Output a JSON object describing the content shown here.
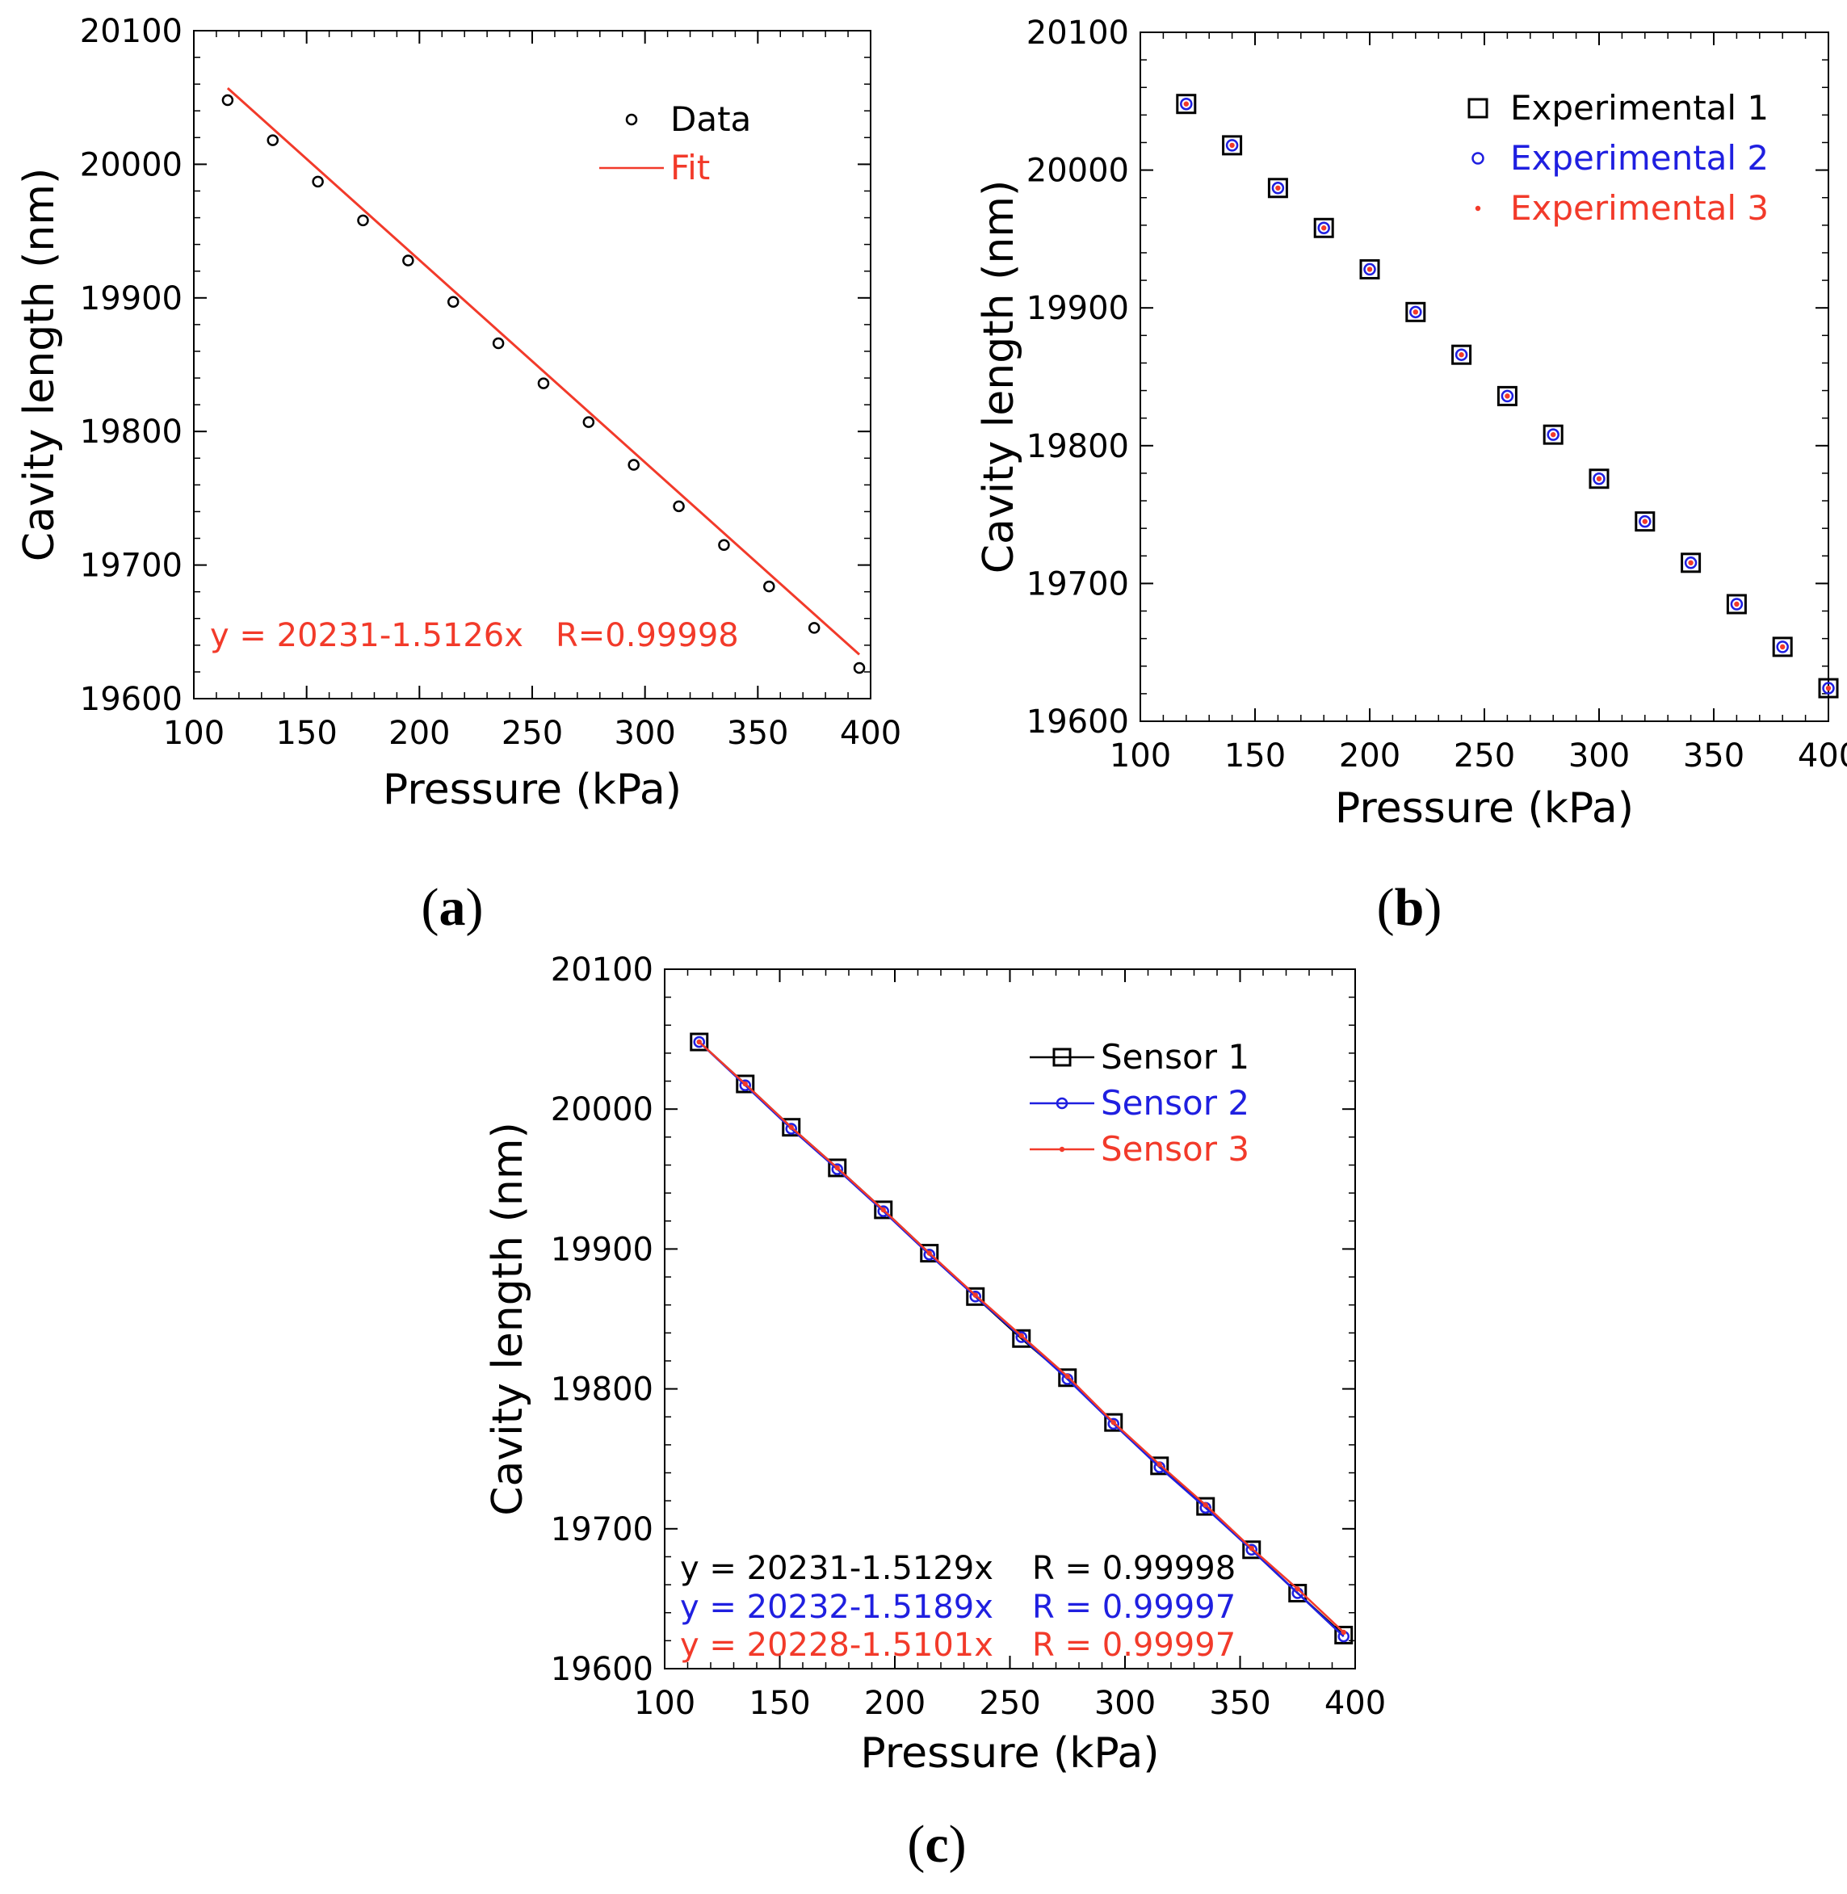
{
  "colors": {
    "black": "#000000",
    "blue": "#1f1fe0",
    "red": "#f23a2a"
  },
  "chart_data": [
    {
      "panel": "a",
      "type": "scatter",
      "panel_label": {
        "open": "(",
        "letter": "a",
        "close": ")"
      },
      "xlabel": "Pressure (kPa)",
      "ylabel": "Cavity length (nm)",
      "xlim": [
        100,
        400
      ],
      "ylim": [
        19600,
        20100
      ],
      "xticks": [
        100,
        150,
        200,
        250,
        300,
        350,
        400
      ],
      "yticks": [
        19600,
        19700,
        19800,
        19900,
        20000,
        20100
      ],
      "legend_position": "top-right",
      "series": [
        {
          "name": "Data",
          "marker": "circle",
          "color": "#000000",
          "x": [
            115,
            135,
            155,
            175,
            195,
            215,
            235,
            255,
            275,
            295,
            315,
            335,
            355,
            375,
            395
          ],
          "y": [
            20048,
            20018,
            19987,
            19958,
            19928,
            19897,
            19866,
            19836,
            19807,
            19775,
            19744,
            19715,
            19684,
            19653,
            19623
          ]
        },
        {
          "name": "Fit",
          "line": true,
          "color": "#f23a2a",
          "x": [
            115,
            395
          ],
          "y": [
            20057,
            19633
          ]
        }
      ],
      "annotations": [
        {
          "id": "eq1",
          "text": "y = 20231-1.5126x",
          "color": "#f23a2a"
        },
        {
          "id": "r1",
          "text": "R=0.99998",
          "color": "#f23a2a"
        }
      ]
    },
    {
      "panel": "b",
      "type": "scatter",
      "panel_label": {
        "open": "(",
        "letter": "b",
        "close": ")"
      },
      "xlabel": "Pressure (kPa)",
      "ylabel": "Cavity length (nm)",
      "xlim": [
        100,
        400
      ],
      "ylim": [
        19600,
        20100
      ],
      "xticks": [
        100,
        150,
        200,
        250,
        300,
        350,
        400
      ],
      "yticks": [
        19600,
        19700,
        19800,
        19900,
        20000,
        20100
      ],
      "legend_position": "top-right",
      "series": [
        {
          "name": "Experimental 1",
          "marker": "square",
          "color": "#000000",
          "x": [
            120,
            140,
            160,
            180,
            200,
            220,
            240,
            260,
            280,
            300,
            320,
            340,
            360,
            380,
            400
          ],
          "y": [
            20048,
            20018,
            19987,
            19958,
            19928,
            19897,
            19866,
            19836,
            19808,
            19776,
            19745,
            19715,
            19685,
            19654,
            19624
          ]
        },
        {
          "name": "Experimental 2",
          "marker": "circle",
          "color": "#1f1fe0",
          "x": [
            120,
            140,
            160,
            180,
            200,
            220,
            240,
            260,
            280,
            300,
            320,
            340,
            360,
            380,
            400
          ],
          "y": [
            20048,
            20018,
            19987,
            19958,
            19928,
            19897,
            19866,
            19836,
            19808,
            19776,
            19745,
            19715,
            19685,
            19654,
            19624
          ]
        },
        {
          "name": "Experimental 3",
          "marker": "dot",
          "color": "#f23a2a",
          "x": [
            120,
            140,
            160,
            180,
            200,
            220,
            240,
            260,
            280,
            300,
            320,
            340,
            360,
            380,
            400
          ],
          "y": [
            20048,
            20018,
            19987,
            19958,
            19928,
            19897,
            19866,
            19836,
            19808,
            19776,
            19745,
            19715,
            19685,
            19654,
            19624
          ]
        }
      ]
    },
    {
      "panel": "c",
      "type": "line",
      "panel_label": {
        "open": "(",
        "letter": "c",
        "close": ")"
      },
      "xlabel": "Pressure (kPa)",
      "ylabel": "Cavity length (nm)",
      "xlim": [
        100,
        400
      ],
      "ylim": [
        19600,
        20100
      ],
      "xticks": [
        100,
        150,
        200,
        250,
        300,
        350,
        400
      ],
      "yticks": [
        19600,
        19700,
        19800,
        19900,
        20000,
        20100
      ],
      "legend_position": "top-right",
      "series": [
        {
          "name": "Sensor 1",
          "marker": "square",
          "color": "#000000",
          "x": [
            115,
            135,
            155,
            175,
            195,
            215,
            235,
            255,
            275,
            295,
            315,
            335,
            355,
            375,
            395
          ],
          "y": [
            20048,
            20018,
            19987,
            19958,
            19928,
            19897,
            19866,
            19836,
            19808,
            19776,
            19745,
            19716,
            19685,
            19654,
            19624
          ]
        },
        {
          "name": "Sensor 2",
          "marker": "circle",
          "color": "#1f1fe0",
          "x": [
            115,
            135,
            155,
            175,
            195,
            215,
            235,
            255,
            275,
            295,
            315,
            335,
            355,
            375,
            395
          ],
          "y": [
            20048,
            20017,
            19986,
            19957,
            19927,
            19896,
            19866,
            19837,
            19807,
            19775,
            19744,
            19715,
            19685,
            19654,
            19623
          ]
        },
        {
          "name": "Sensor 3",
          "marker": "dot",
          "color": "#f23a2a",
          "x": [
            115,
            135,
            155,
            175,
            195,
            215,
            235,
            255,
            275,
            295,
            315,
            335,
            355,
            375,
            395
          ],
          "y": [
            20048,
            20018,
            19987,
            19958,
            19928,
            19897,
            19867,
            19838,
            19809,
            19776,
            19746,
            19717,
            19686,
            19657,
            19626
          ]
        }
      ],
      "annotations": [
        {
          "id": "eq1",
          "text": "y = 20231-1.5129x",
          "color": "#000000"
        },
        {
          "id": "r1",
          "text": "R = 0.99998",
          "color": "#000000"
        },
        {
          "id": "eq2",
          "text": "y = 20232-1.5189x",
          "color": "#1f1fe0"
        },
        {
          "id": "r2",
          "text": "R = 0.99997",
          "color": "#1f1fe0"
        },
        {
          "id": "eq3",
          "text": "y = 20228-1.5101x",
          "color": "#f23a2a"
        },
        {
          "id": "r3",
          "text": "R = 0.99997",
          "color": "#f23a2a"
        }
      ]
    }
  ]
}
